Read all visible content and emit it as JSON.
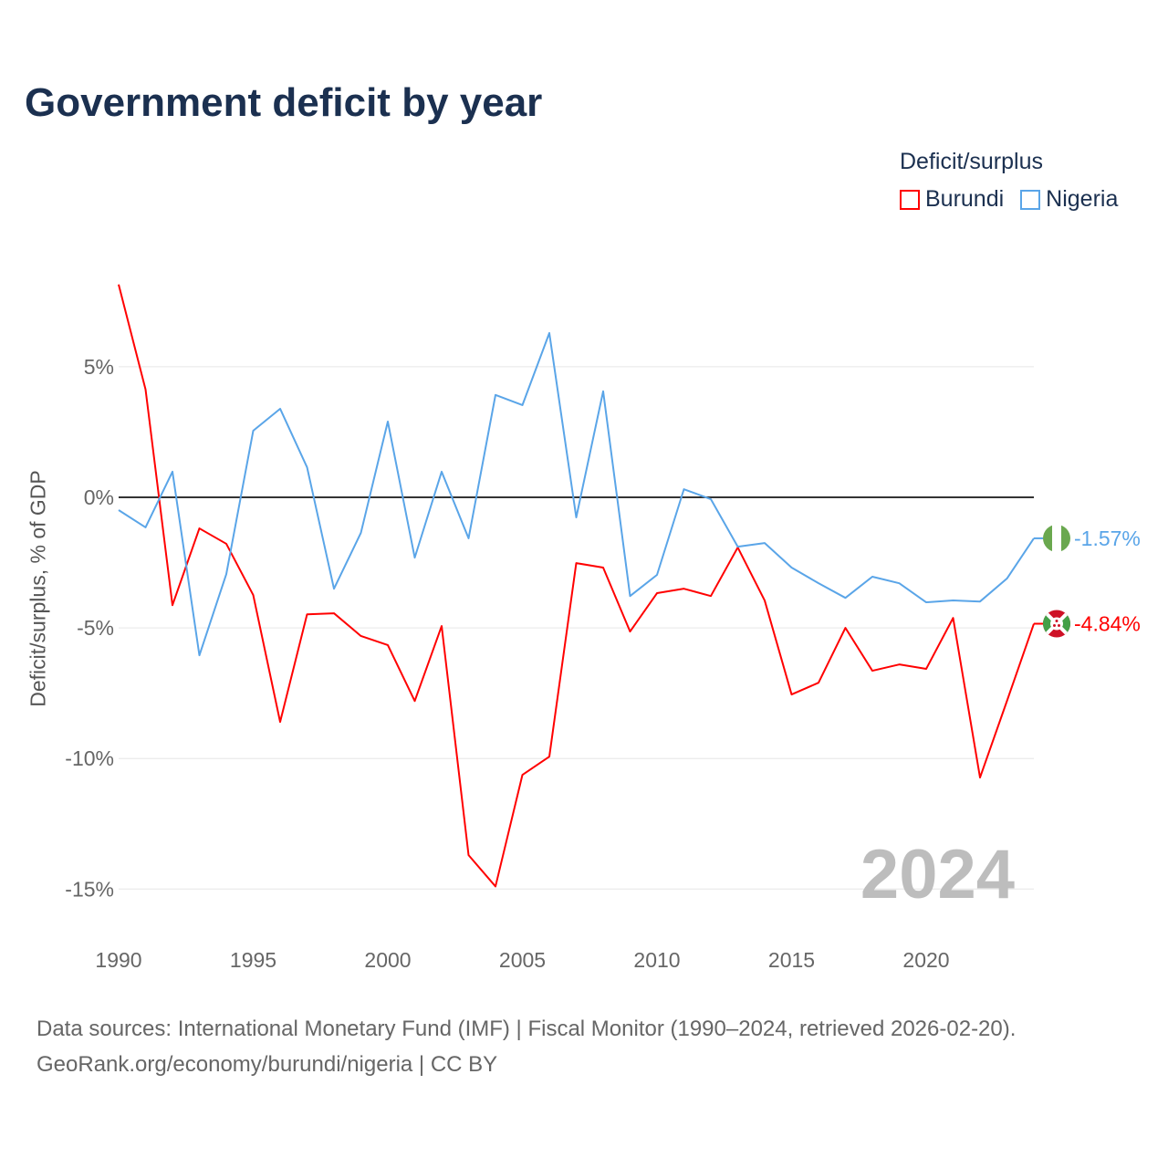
{
  "title": "Government deficit by year",
  "legend": {
    "title": "Deficit/surplus",
    "items": [
      {
        "label": "Burundi",
        "color": "#ff0000"
      },
      {
        "label": "Nigeria",
        "color": "#5aa5e8"
      }
    ]
  },
  "source": {
    "line1": "Data sources: International Monetary Fund (IMF) | Fiscal Monitor (1990–2024, retrieved 2026-02-20).",
    "line2": "GeoRank.org/economy/burundi/nigeria | CC BY"
  },
  "chart_data": {
    "type": "line",
    "title": "Government deficit by year",
    "xlabel": "",
    "ylabel": "Deficit/surplus, % of GDP",
    "xlim": [
      1990,
      2024
    ],
    "ylim": [
      -16.5,
      9
    ],
    "x_ticks": [
      1990,
      1995,
      2000,
      2005,
      2010,
      2015,
      2020
    ],
    "y_ticks": [
      {
        "value": 5,
        "label": "5%"
      },
      {
        "value": 0,
        "label": "0%"
      },
      {
        "value": -5,
        "label": "-5%"
      },
      {
        "value": -10,
        "label": "-10%"
      },
      {
        "value": -15,
        "label": "-15%"
      }
    ],
    "watermark_year": "2024",
    "x": [
      1990,
      1991,
      1992,
      1993,
      1994,
      1995,
      1996,
      1997,
      1998,
      1999,
      2000,
      2001,
      2002,
      2003,
      2004,
      2005,
      2006,
      2007,
      2008,
      2009,
      2010,
      2011,
      2012,
      2013,
      2014,
      2015,
      2016,
      2017,
      2018,
      2019,
      2020,
      2021,
      2022,
      2023,
      2024
    ],
    "series": [
      {
        "name": "Burundi",
        "color": "#ff0000",
        "end_label": "-4.84%",
        "values": [
          8.15,
          4.13,
          -4.13,
          -1.19,
          -1.78,
          -3.74,
          -8.6,
          -4.48,
          -4.44,
          -5.31,
          -5.66,
          -7.8,
          -4.93,
          -13.7,
          -14.9,
          -10.63,
          -9.93,
          -2.52,
          -2.69,
          -5.14,
          -3.67,
          -3.5,
          -3.78,
          -1.92,
          -3.95,
          -7.55,
          -7.1,
          -5.0,
          -6.64,
          -6.4,
          -6.57,
          -4.62,
          -10.73,
          -7.8,
          -4.84
        ]
      },
      {
        "name": "Nigeria",
        "color": "#5aa5e8",
        "end_label": "-1.57%",
        "values": [
          -0.49,
          -1.15,
          0.98,
          -6.05,
          -2.94,
          2.55,
          3.39,
          1.15,
          -3.5,
          -1.36,
          2.9,
          -2.31,
          0.98,
          -1.57,
          3.92,
          3.53,
          6.29,
          -0.77,
          4.06,
          -3.78,
          -2.97,
          0.31,
          -0.07,
          -1.89,
          -1.75,
          -2.69,
          -3.29,
          -3.85,
          -3.04,
          -3.29,
          -4.02,
          -3.95,
          -3.99,
          -3.11,
          -1.57
        ]
      }
    ]
  }
}
